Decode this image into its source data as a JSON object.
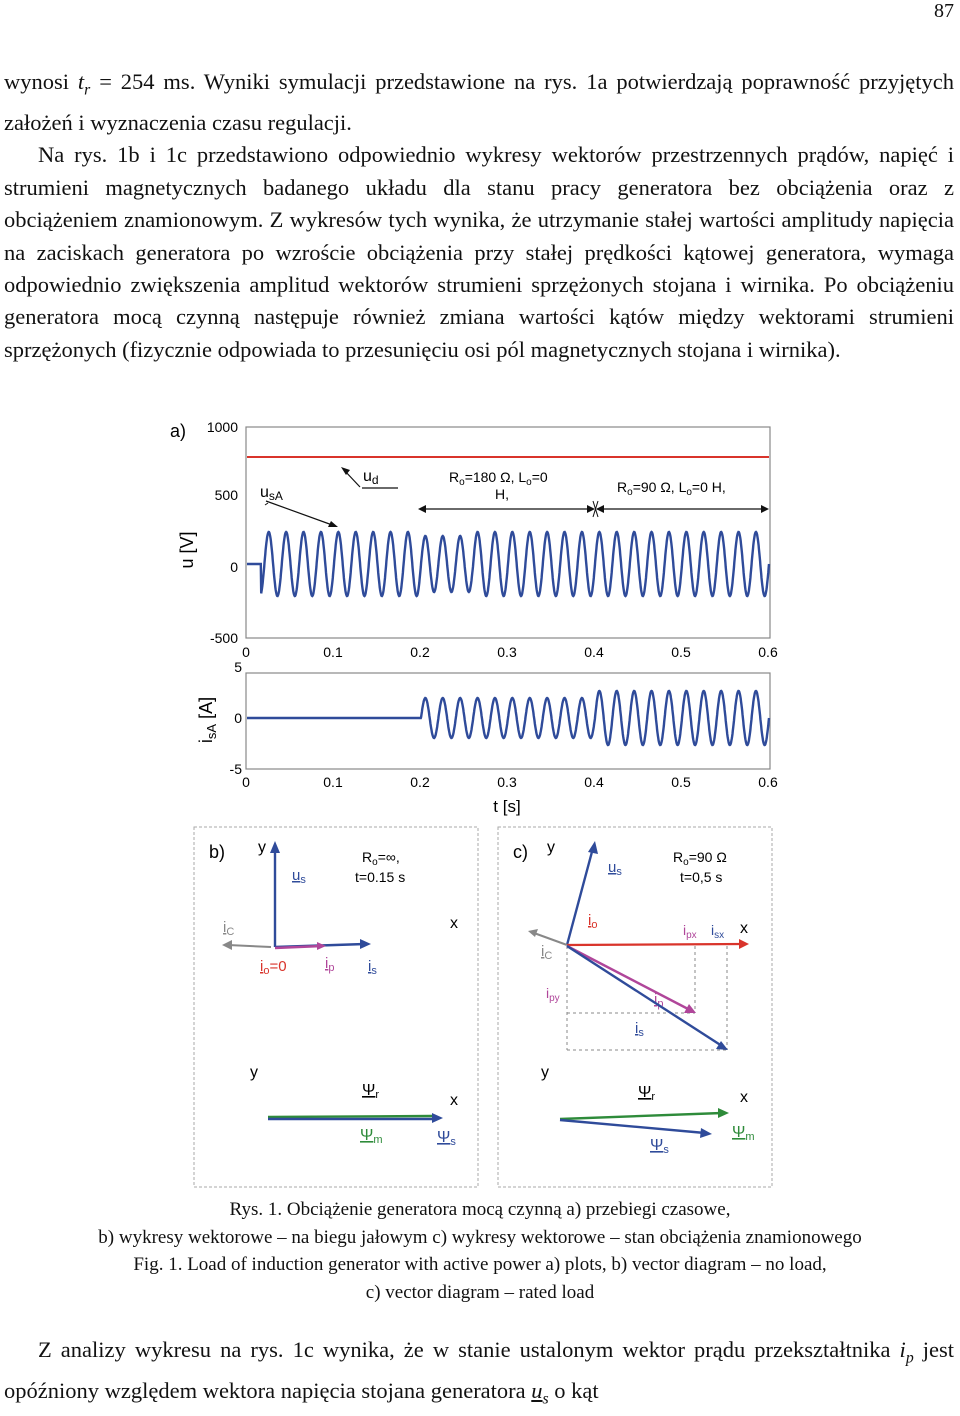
{
  "page_number": "87",
  "paragraphs": {
    "p1": "wynosi tr = 254 ms. Wyniki symulacji przedstawione na rys. 1a potwierdzają poprawność przyjętych założeń i wyznaczenia czasu regulacji.",
    "p1_a": "wynosi ",
    "p1_t": "t",
    "p1_r": "r",
    "p1_b": " = 254 ms. Wyniki symulacji przedstawione na rys. 1a potwierdzają poprawność przyjętych założeń i wyznaczenia czasu regulacji.",
    "p2": "Na rys. 1b i 1c przedstawiono odpowiednio wykresy wektorów przestrzennych prądów, napięć i strumieni magnetycznych badanego układu dla stanu pracy generatora bez obciążenia oraz z obciążeniem znamionowym. Z wykresów tych wynika, że utrzymanie stałej wartości amplitudy napięcia na zaciskach generatora po wzroście obciążenia przy stałej prędkości kątowej generatora, wymaga odpowiednio zwiększenia amplitud wektorów strumieni sprzężonych stojana i wirnika. Po obciążeniu generatora mocą czynną następuje również zmiana wartości kątów między wektorami strumieni sprzężonych (fizycznie odpowiada to przesunięciu osi pól magnetycznych stojana i wirnika).",
    "p3_a": "Z analizy wykresu na rys. 1c wynika, że w stanie ustalonym wektor prądu przekształtnika ",
    "p3_i": "i",
    "p3_p": "p",
    "p3_b": " jest opóźniony względem wektora napięcia stojana generatora ",
    "p3_u": "u",
    "p3_s": "s",
    "p3_c": " o kąt"
  },
  "figure": {
    "panel_a": {
      "label": "a)",
      "ylabel_top": "u [V]",
      "ylabel_bottom_i": "i",
      "ylabel_bottom_sub": "sA",
      "ylabel_bottom_unit": " [A]",
      "xlabel": "t [s]",
      "yticks_top": [
        "1000",
        "500",
        "0",
        "-500"
      ],
      "yticks_bottom": [
        "5",
        "0",
        "-5"
      ],
      "xticks": [
        "0",
        "0.1",
        "0.2",
        "0.3",
        "0.4",
        "0.5",
        "0.6"
      ],
      "annot_usA_u": "u",
      "annot_usA_sub": "sA",
      "annot_ud_u": "u",
      "annot_ud_sub": "d",
      "annot_r1_line1": "R",
      "annot_r1_sub": "o",
      "annot_r1_rest": "=180 Ω, L",
      "annot_r1_sub2": "o",
      "annot_r1_rest2": "=0",
      "annot_r1_line2": "H,",
      "annot_r2": "R",
      "annot_r2_sub": "o",
      "annot_r2_rest": "=90 Ω, L",
      "annot_r2_sub2": "o",
      "annot_r2_rest2": "=0 H,"
    },
    "panel_b": {
      "label": "b)",
      "y": "y",
      "x": "x",
      "u_s": "u",
      "u_s_sub": "s",
      "r_line1": "R",
      "r_sub": "o",
      "r_rest": "=∞,",
      "t_line": "t=0.15 s",
      "i_c": "i",
      "i_c_sub": "C",
      "i_o": "i",
      "i_o_sub": "o",
      "i_o_rest": "=0",
      "i_p": "i",
      "i_p_sub": "p",
      "i_s": "i",
      "i_s_sub": "s",
      "psi_r": "Ψ",
      "psi_r_sub": "r",
      "psi_m": "Ψ",
      "psi_m_sub": "m",
      "psi_s": "Ψ",
      "psi_s_sub": "s"
    },
    "panel_c": {
      "label": "c)",
      "y": "y",
      "x": "x",
      "u_s": "u",
      "u_s_sub": "s",
      "r_line1": "R",
      "r_sub": "o",
      "r_rest": "=90 Ω",
      "t_line": "t=0,5 s",
      "i_o": "i",
      "i_o_sub": "o",
      "i_px": "i",
      "i_px_sub": "px",
      "i_sx": "i",
      "i_sx_sub": "sx",
      "i_c": "i",
      "i_c_sub": "C",
      "i_py": "i",
      "i_py_sub": "py",
      "i_p": "i",
      "i_p_sub": "p",
      "i_s": "i",
      "i_s_sub": "s",
      "psi_r": "Ψ",
      "psi_r_sub": "r",
      "psi_m": "Ψ",
      "psi_m_sub": "m",
      "psi_s": "Ψ",
      "psi_s_sub": "s"
    },
    "colors": {
      "waveform": "#2f4b9a",
      "ud_line": "#d9342b",
      "green": "#2e8b3a",
      "magenta": "#b0469a",
      "red": "#d9342b",
      "gray": "#888888"
    }
  },
  "caption": {
    "line1": "Rys. 1. Obciążenie generatora mocą czynną a) przebiegi czasowe,",
    "line2": "b) wykresy wektorowe – na biegu jałowym c) wykresy wektorowe – stan obciążenia znamionowego",
    "line3": "Fig. 1. Load of induction generator with active power a) plots, b) vector diagram – no load,",
    "line4": "c) vector diagram – rated load"
  }
}
